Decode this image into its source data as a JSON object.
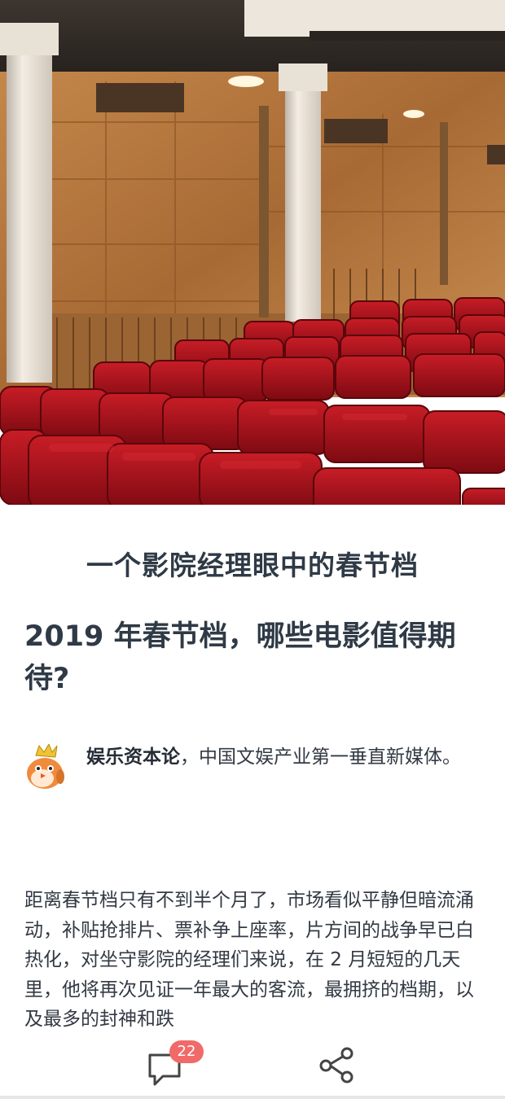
{
  "hero": {
    "icon": "theater-seats-photo",
    "colors": {
      "seat": "#b3121c",
      "wood": "#b2743b",
      "pillar": "#e9e2d7"
    }
  },
  "article": {
    "column_title": "一个影院经理眼中的春节档",
    "title": "2019 年春节档，哪些电影值得期待?",
    "author": {
      "avatar_icon": "bird-crown-avatar-icon",
      "name": "娱乐资本论",
      "description": "，中国文娱产业第一垂直新媒体。"
    },
    "body": "距离春节档只有不到半个月了，市场看似平静但暗流涌动，补贴抢排片、票补争上座率，片方间的战争早已白热化，对坐守影院的经理们来说，在 2 月短短的几天里，他将再次见证一年最大的客流，最拥挤的档期，以及最多的封神和跌"
  },
  "bottom_bar": {
    "comment_icon": "comment-bubble-icon",
    "comment_count": "22",
    "share_icon": "share-icon",
    "badge_color": "#f16a6a"
  }
}
